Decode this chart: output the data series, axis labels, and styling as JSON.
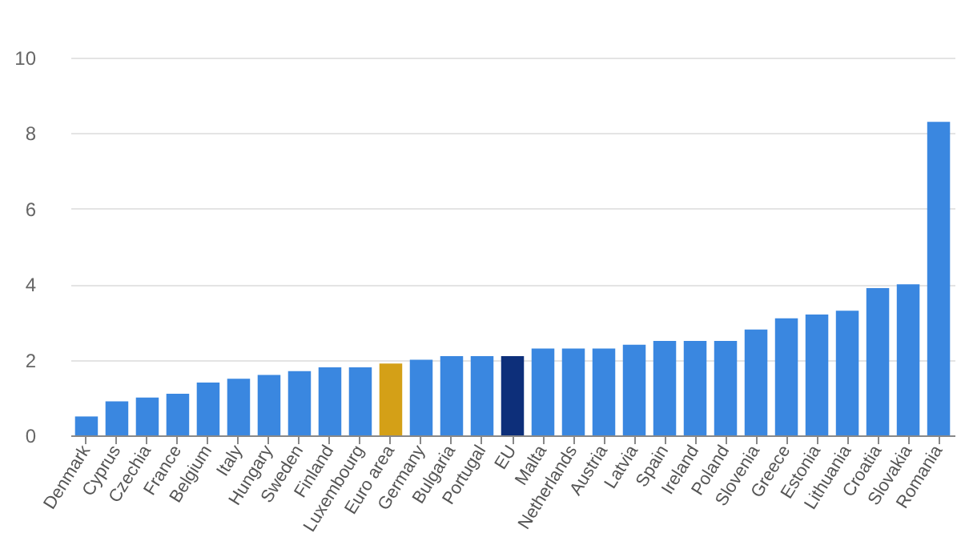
{
  "chart_data": {
    "type": "bar",
    "categories": [
      "Denmark",
      "Cyprus",
      "Czechia",
      "France",
      "Belgium",
      "Italy",
      "Hungary",
      "Sweden",
      "Finland",
      "Luxembourg",
      "Euro area",
      "Germany",
      "Bulgaria",
      "Portugal",
      "EU",
      "Malta",
      "Netherlands",
      "Austria",
      "Latvia",
      "Spain",
      "Ireland",
      "Poland",
      "Slovenia",
      "Greece",
      "Estonia",
      "Lithuania",
      "Croatia",
      "Slovakia",
      "Romania"
    ],
    "values": [
      0.5,
      0.9,
      1.0,
      1.1,
      1.4,
      1.5,
      1.6,
      1.7,
      1.8,
      1.8,
      1.9,
      2.0,
      2.1,
      2.1,
      2.1,
      2.3,
      2.3,
      2.3,
      2.4,
      2.5,
      2.5,
      2.5,
      2.8,
      3.1,
      3.2,
      3.3,
      3.9,
      4.0,
      8.3
    ],
    "colors": [
      "#3a87e0",
      "#3a87e0",
      "#3a87e0",
      "#3a87e0",
      "#3a87e0",
      "#3a87e0",
      "#3a87e0",
      "#3a87e0",
      "#3a87e0",
      "#3a87e0",
      "#d4a017",
      "#3a87e0",
      "#3a87e0",
      "#3a87e0",
      "#0d2f7a",
      "#3a87e0",
      "#3a87e0",
      "#3a87e0",
      "#3a87e0",
      "#3a87e0",
      "#3a87e0",
      "#3a87e0",
      "#3a87e0",
      "#3a87e0",
      "#3a87e0",
      "#3a87e0",
      "#3a87e0",
      "#3a87e0",
      "#3a87e0"
    ],
    "ylim": [
      0,
      10
    ],
    "yticks": [
      0,
      2,
      4,
      6,
      8,
      10
    ],
    "grid": "y"
  }
}
